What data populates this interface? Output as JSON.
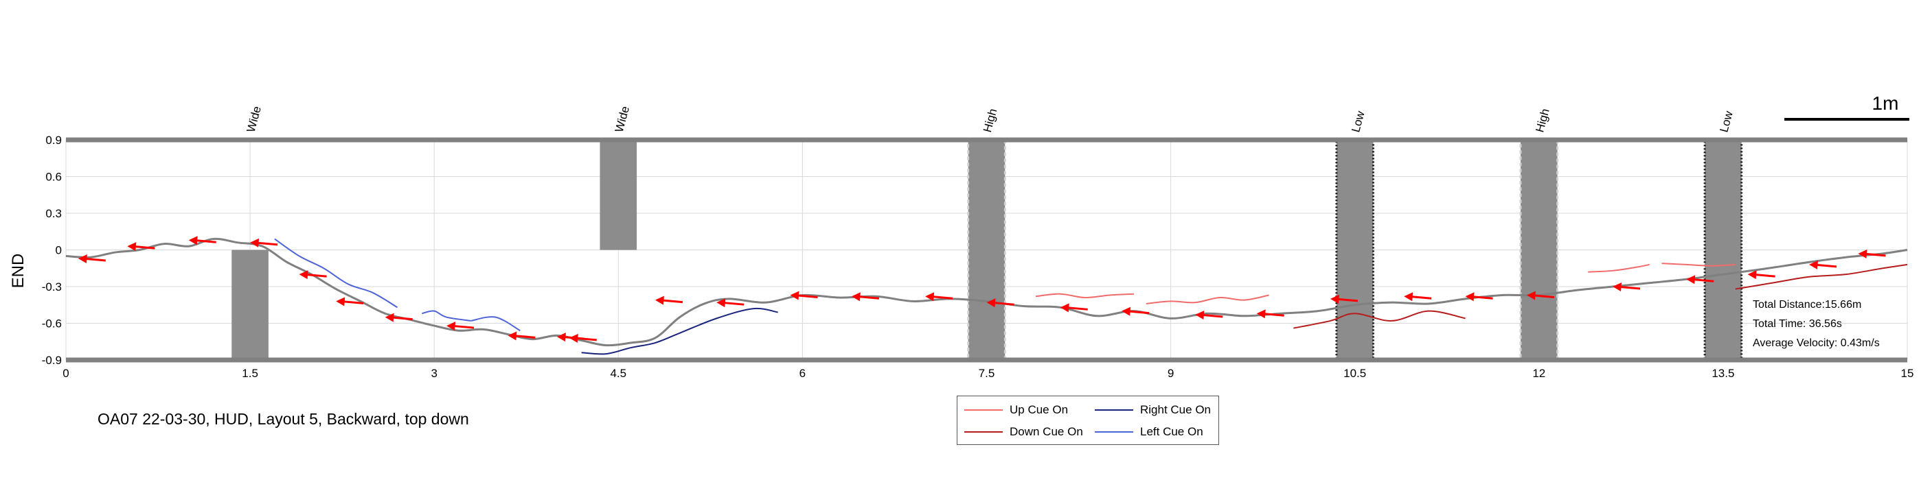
{
  "caption": "OA07 22-03-30, HUD, Layout 5, Backward, top down",
  "scale_bar": {
    "label": "1m"
  },
  "stats": {
    "distance": "Total Distance:15.66m",
    "time": "Total Time: 36.56s",
    "velocity": "Average Velocity: 0.43m/s"
  },
  "legend": [
    {
      "label": "Up Cue On",
      "color": "#f26b6b"
    },
    {
      "label": "Right Cue On",
      "color": "#1a237e"
    },
    {
      "label": "Down Cue On",
      "color": "#b71c1c"
    },
    {
      "label": "Left Cue On",
      "color": "#4f63d8"
    }
  ],
  "colors": {
    "path": "#808080",
    "arrow": "#ff0000",
    "obstacle": "#8c8c8c",
    "wall": "#808080",
    "grid": "#d9d9d9"
  },
  "chart_data": {
    "type": "line",
    "ylabel": "END",
    "xlim": [
      0,
      15
    ],
    "ylim": [
      -0.9,
      0.9
    ],
    "xticks": [
      "0",
      "1.5",
      "3",
      "4.5",
      "6",
      "7.5",
      "9",
      "10.5",
      "12",
      "13.5",
      "15"
    ],
    "yticks": [
      "0.9",
      "0.6",
      "0.3",
      "0",
      "-0.3",
      "-0.6",
      "-0.9"
    ],
    "grid": true,
    "legend_position": "bottom-center",
    "obstacles": [
      {
        "x": 1.5,
        "label": "Wide",
        "y_range": [
          -0.9,
          0.0
        ],
        "outline": "none"
      },
      {
        "x": 4.5,
        "label": "Wide",
        "y_range": [
          0.0,
          0.9
        ],
        "outline": "none"
      },
      {
        "x": 7.5,
        "label": "High",
        "y_range": [
          -0.9,
          0.9
        ],
        "outline": "light-dashed"
      },
      {
        "x": 10.5,
        "label": "Low",
        "y_range": [
          -0.9,
          0.9
        ],
        "outline": "dark-dotted"
      },
      {
        "x": 12,
        "label": "High",
        "y_range": [
          -0.9,
          0.9
        ],
        "outline": "light-dashed"
      },
      {
        "x": 13.5,
        "label": "Low",
        "y_range": [
          -0.9,
          0.9
        ],
        "outline": "dark-dotted"
      }
    ],
    "path": {
      "x": [
        15.0,
        14.8,
        14.5,
        14.2,
        14.0,
        13.8,
        13.5,
        13.2,
        12.9,
        12.6,
        12.3,
        12.0,
        11.7,
        11.4,
        11.1,
        10.8,
        10.5,
        10.2,
        9.9,
        9.6,
        9.3,
        9.0,
        8.7,
        8.4,
        8.1,
        7.8,
        7.5,
        7.2,
        6.9,
        6.6,
        6.3,
        6.0,
        5.7,
        5.4,
        5.2,
        5.0,
        4.8,
        4.6,
        4.4,
        4.2,
        4.0,
        3.8,
        3.6,
        3.4,
        3.2,
        3.0,
        2.8,
        2.6,
        2.4,
        2.2,
        2.0,
        1.8,
        1.6,
        1.4,
        1.2,
        1.0,
        0.8,
        0.6,
        0.4,
        0.2,
        0.0
      ],
      "y": [
        0.0,
        -0.03,
        -0.06,
        -0.1,
        -0.13,
        -0.16,
        -0.2,
        -0.24,
        -0.27,
        -0.3,
        -0.33,
        -0.37,
        -0.37,
        -0.4,
        -0.44,
        -0.43,
        -0.45,
        -0.5,
        -0.52,
        -0.54,
        -0.52,
        -0.56,
        -0.5,
        -0.54,
        -0.47,
        -0.46,
        -0.42,
        -0.4,
        -0.42,
        -0.38,
        -0.39,
        -0.37,
        -0.43,
        -0.4,
        -0.44,
        -0.55,
        -0.72,
        -0.76,
        -0.78,
        -0.74,
        -0.7,
        -0.73,
        -0.69,
        -0.65,
        -0.66,
        -0.62,
        -0.57,
        -0.52,
        -0.42,
        -0.32,
        -0.2,
        -0.1,
        0.03,
        0.06,
        0.09,
        0.03,
        0.05,
        0.0,
        -0.02,
        -0.06,
        -0.05
      ]
    },
    "arrows": [
      {
        "x": 14.6,
        "y": -0.03
      },
      {
        "x": 14.2,
        "y": -0.12
      },
      {
        "x": 13.7,
        "y": -0.2
      },
      {
        "x": 13.2,
        "y": -0.24
      },
      {
        "x": 12.6,
        "y": -0.3
      },
      {
        "x": 11.9,
        "y": -0.37
      },
      {
        "x": 11.4,
        "y": -0.38
      },
      {
        "x": 10.9,
        "y": -0.38
      },
      {
        "x": 10.3,
        "y": -0.4
      },
      {
        "x": 9.7,
        "y": -0.52
      },
      {
        "x": 9.2,
        "y": -0.53
      },
      {
        "x": 8.6,
        "y": -0.5
      },
      {
        "x": 8.1,
        "y": -0.47
      },
      {
        "x": 7.5,
        "y": -0.43
      },
      {
        "x": 7.0,
        "y": -0.38
      },
      {
        "x": 6.4,
        "y": -0.38
      },
      {
        "x": 5.9,
        "y": -0.37
      },
      {
        "x": 5.3,
        "y": -0.43
      },
      {
        "x": 4.8,
        "y": -0.41
      },
      {
        "x": 4.1,
        "y": -0.72
      },
      {
        "x": 4.0,
        "y": -0.71
      },
      {
        "x": 3.6,
        "y": -0.7
      },
      {
        "x": 3.1,
        "y": -0.62
      },
      {
        "x": 2.6,
        "y": -0.55
      },
      {
        "x": 2.2,
        "y": -0.42
      },
      {
        "x": 1.9,
        "y": -0.2
      },
      {
        "x": 1.5,
        "y": 0.06
      },
      {
        "x": 1.0,
        "y": 0.08
      },
      {
        "x": 0.5,
        "y": 0.03
      },
      {
        "x": 0.1,
        "y": -0.07
      }
    ],
    "cue_segments": [
      {
        "cue": "Up Cue On",
        "x": [
          12.4,
          12.6,
          12.8,
          12.9
        ],
        "y": [
          -0.18,
          -0.17,
          -0.14,
          -0.12
        ]
      },
      {
        "cue": "Up Cue On",
        "x": [
          13.0,
          13.2,
          13.4,
          13.6
        ],
        "y": [
          -0.11,
          -0.12,
          -0.13,
          -0.12
        ]
      },
      {
        "cue": "Up Cue On",
        "x": [
          7.9,
          8.1,
          8.3,
          8.5,
          8.7
        ],
        "y": [
          -0.38,
          -0.36,
          -0.39,
          -0.37,
          -0.36
        ]
      },
      {
        "cue": "Up Cue On",
        "x": [
          8.8,
          9.0,
          9.2,
          9.4,
          9.6,
          9.8
        ],
        "y": [
          -0.44,
          -0.42,
          -0.43,
          -0.39,
          -0.41,
          -0.37
        ]
      },
      {
        "cue": "Down Cue On",
        "x": [
          13.6,
          13.9,
          14.2,
          14.5,
          14.8,
          15.0
        ],
        "y": [
          -0.32,
          -0.27,
          -0.22,
          -0.2,
          -0.15,
          -0.12
        ]
      },
      {
        "cue": "Down Cue On",
        "x": [
          10.0,
          10.3,
          10.5,
          10.8,
          11.1,
          11.4
        ],
        "y": [
          -0.64,
          -0.58,
          -0.52,
          -0.58,
          -0.5,
          -0.56
        ]
      },
      {
        "cue": "Right Cue On",
        "x": [
          4.2,
          4.4,
          4.6,
          4.8,
          5.0,
          5.3,
          5.6,
          5.8
        ],
        "y": [
          -0.84,
          -0.85,
          -0.8,
          -0.76,
          -0.68,
          -0.56,
          -0.48,
          -0.51
        ]
      },
      {
        "cue": "Left Cue On",
        "x": [
          1.7,
          1.9,
          2.1,
          2.3,
          2.5,
          2.7
        ],
        "y": [
          0.09,
          -0.05,
          -0.15,
          -0.28,
          -0.35,
          -0.47
        ]
      },
      {
        "cue": "Left Cue On",
        "x": [
          2.9,
          3.0,
          3.1,
          3.3
        ],
        "y": [
          -0.52,
          -0.5,
          -0.55,
          -0.58
        ]
      },
      {
        "cue": "Left Cue On",
        "x": [
          3.3,
          3.5,
          3.7
        ],
        "y": [
          -0.58,
          -0.55,
          -0.66
        ]
      }
    ]
  }
}
